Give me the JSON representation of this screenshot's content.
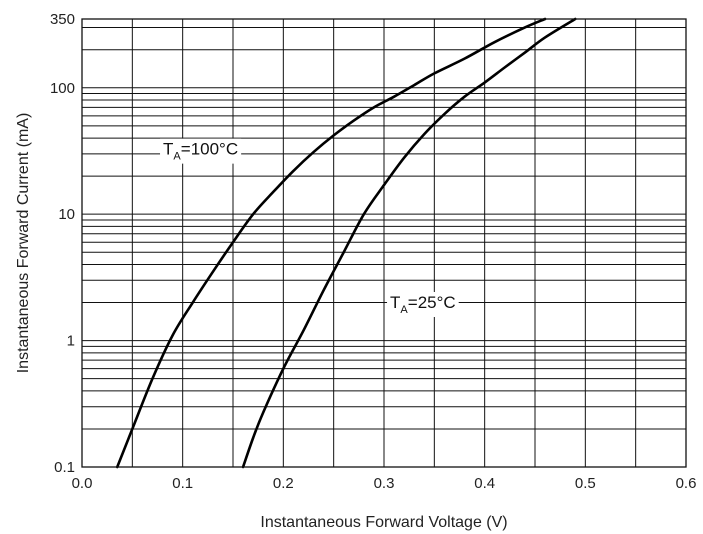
{
  "chart_data": {
    "type": "line",
    "title": "",
    "xlabel": "Instantaneous Forward Voltage (V)",
    "ylabel": "Instantaneous Forward Current (mA)",
    "xlim": [
      0.0,
      0.6
    ],
    "ylim": [
      0.1,
      350
    ],
    "yscale": "log",
    "grid": true,
    "x_ticks": [
      "0.0",
      "0.1",
      "0.2",
      "0.3",
      "0.4",
      "0.5",
      "0.6"
    ],
    "y_ticks": [
      {
        "value": 0.1,
        "label": "0.1"
      },
      {
        "value": 1,
        "label": "1"
      },
      {
        "value": 10,
        "label": "10"
      },
      {
        "value": 100,
        "label": "100"
      },
      {
        "value": 350,
        "label": "350"
      }
    ],
    "series": [
      {
        "name": "TA=100°C",
        "x": [
          0.035,
          0.05,
          0.07,
          0.09,
          0.11,
          0.13,
          0.15,
          0.17,
          0.19,
          0.21,
          0.23,
          0.25,
          0.27,
          0.29,
          0.31,
          0.33,
          0.35,
          0.38,
          0.41,
          0.44,
          0.46
        ],
        "y": [
          0.1,
          0.2,
          0.5,
          1.1,
          2.0,
          3.5,
          6,
          10,
          15,
          22,
          31,
          42,
          55,
          70,
          85,
          105,
          130,
          170,
          230,
          300,
          350
        ]
      },
      {
        "name": "TA=25°C",
        "x": [
          0.16,
          0.17,
          0.18,
          0.2,
          0.22,
          0.24,
          0.26,
          0.28,
          0.3,
          0.32,
          0.34,
          0.36,
          0.38,
          0.4,
          0.42,
          0.44,
          0.46,
          0.49
        ],
        "y": [
          0.1,
          0.17,
          0.27,
          0.6,
          1.2,
          2.5,
          5,
          10,
          17,
          28,
          43,
          62,
          85,
          110,
          145,
          190,
          250,
          350
        ]
      }
    ],
    "annotations": [
      {
        "main": "T",
        "sub": "A",
        "rest": "=100°C",
        "at_x": 0.0805,
        "at_y": 33
      },
      {
        "main": "T",
        "sub": "A",
        "rest": "=25°C",
        "at_x": 0.306,
        "at_y": 2.02
      }
    ]
  }
}
